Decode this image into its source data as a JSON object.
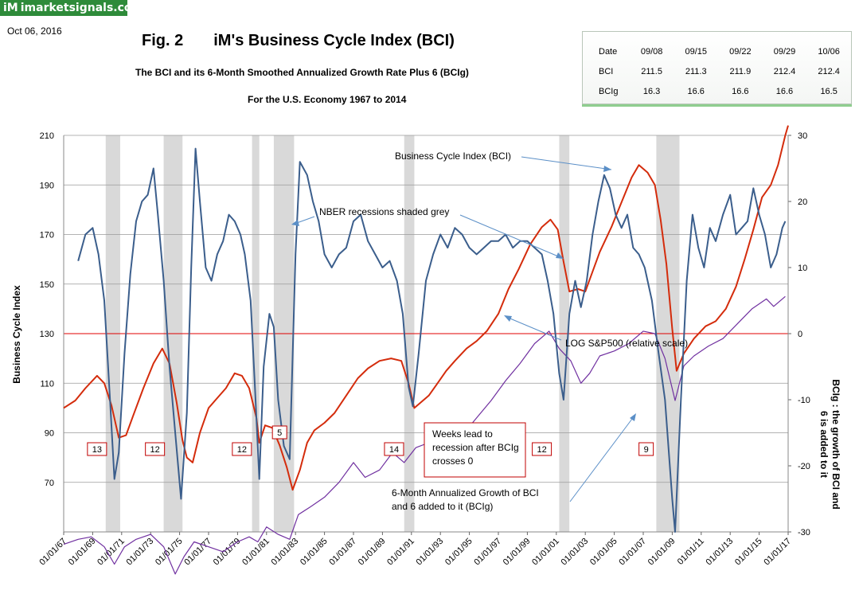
{
  "header": {
    "logo_mark": "iM",
    "logo_text": "imarketsignals.com",
    "date": "Oct 06, 2016",
    "fig_label": "Fig. 2",
    "title": "iM's Business Cycle Index (BCI)",
    "subtitle": "The BCI and its 6-Month Smoothed Annualized Growth Rate Plus 6 (BCIg)",
    "subtitle2": "For the U.S. Economy 1967  to 2014"
  },
  "table": {
    "header": [
      "Date",
      "09/08",
      "09/15",
      "09/22",
      "09/29",
      "10/06"
    ],
    "rows": [
      [
        "BCI",
        "211.5",
        "211.3",
        "211.9",
        "212.4",
        "212.4"
      ],
      [
        "BCIg",
        "16.3",
        "16.6",
        "16.6",
        "16.6",
        "16.5"
      ]
    ]
  },
  "chart_data": {
    "type": "line",
    "ylabel": "Business  Cycle  Index",
    "y2label_line1": "BCIg :  the growth of BCI and",
    "y2label_line2": "6 is added to it",
    "ylim": [
      50,
      210
    ],
    "yticks": [
      70,
      90,
      110,
      130,
      150,
      170,
      190,
      210
    ],
    "y2lim": [
      -30,
      30
    ],
    "y2ticks": [
      -30,
      -20,
      -10,
      0,
      10,
      20,
      30
    ],
    "xlim": [
      1967.0,
      2017.0
    ],
    "xticks": [
      "01/01/67",
      "01/01/69",
      "01/01/71",
      "01/01/73",
      "01/01/75",
      "01/01/77",
      "01/01/79",
      "01/01/81",
      "01/01/83",
      "01/01/85",
      "01/01/87",
      "01/01/89",
      "01/01/91",
      "01/01/93",
      "01/01/95",
      "01/01/97",
      "01/01/99",
      "01/01/01",
      "01/01/03",
      "01/01/05",
      "01/01/07",
      "01/01/09",
      "01/01/11",
      "01/01/13",
      "01/01/15",
      "01/01/17"
    ],
    "grid": "horizontal",
    "recessions": [
      [
        1969.9,
        1970.9
      ],
      [
        1973.9,
        1975.2
      ],
      [
        1980.0,
        1980.5
      ],
      [
        1981.5,
        1982.9
      ],
      [
        1990.5,
        1991.2
      ],
      [
        2001.2,
        2001.9
      ],
      [
        2007.9,
        2009.5
      ]
    ],
    "series": [
      {
        "name": "Business Cycle Index (BCI)",
        "color": "#d42c0c",
        "axis": "left",
        "points": [
          [
            1967.0,
            100
          ],
          [
            1967.8,
            103
          ],
          [
            1968.5,
            108
          ],
          [
            1969.3,
            113
          ],
          [
            1969.8,
            110
          ],
          [
            1970.3,
            101
          ],
          [
            1970.8,
            88
          ],
          [
            1971.3,
            89
          ],
          [
            1971.8,
            97
          ],
          [
            1972.5,
            108
          ],
          [
            1973.2,
            118
          ],
          [
            1973.8,
            124
          ],
          [
            1974.3,
            118
          ],
          [
            1974.8,
            102
          ],
          [
            1975.2,
            87
          ],
          [
            1975.5,
            80
          ],
          [
            1975.9,
            78
          ],
          [
            1976.4,
            90
          ],
          [
            1977.0,
            100
          ],
          [
            1977.6,
            104
          ],
          [
            1978.2,
            108
          ],
          [
            1978.8,
            114
          ],
          [
            1979.3,
            113
          ],
          [
            1979.8,
            108
          ],
          [
            1980.3,
            96
          ],
          [
            1980.5,
            86
          ],
          [
            1980.9,
            93
          ],
          [
            1981.4,
            92
          ],
          [
            1981.9,
            85
          ],
          [
            1982.4,
            76
          ],
          [
            1982.8,
            67
          ],
          [
            1983.3,
            75
          ],
          [
            1983.8,
            86
          ],
          [
            1984.3,
            91
          ],
          [
            1985.0,
            94
          ],
          [
            1985.7,
            98
          ],
          [
            1986.5,
            105
          ],
          [
            1987.3,
            112
          ],
          [
            1988.0,
            116
          ],
          [
            1988.8,
            119
          ],
          [
            1989.6,
            120
          ],
          [
            1990.3,
            119
          ],
          [
            1990.8,
            110
          ],
          [
            1991.2,
            100
          ],
          [
            1991.6,
            102
          ],
          [
            1992.2,
            105
          ],
          [
            1992.8,
            110
          ],
          [
            1993.4,
            115
          ],
          [
            1994.0,
            119
          ],
          [
            1994.8,
            124
          ],
          [
            1995.5,
            127
          ],
          [
            1996.2,
            131
          ],
          [
            1997.0,
            138
          ],
          [
            1997.7,
            148
          ],
          [
            1998.4,
            156
          ],
          [
            1999.2,
            166
          ],
          [
            2000.0,
            173
          ],
          [
            2000.6,
            176
          ],
          [
            2001.1,
            172
          ],
          [
            2001.5,
            159
          ],
          [
            2001.9,
            147
          ],
          [
            2002.5,
            148
          ],
          [
            2003.0,
            147
          ],
          [
            2003.5,
            155
          ],
          [
            2004.0,
            163
          ],
          [
            2004.8,
            173
          ],
          [
            2005.5,
            183
          ],
          [
            2006.2,
            193
          ],
          [
            2006.7,
            198
          ],
          [
            2007.3,
            195
          ],
          [
            2007.8,
            190
          ],
          [
            2008.2,
            176
          ],
          [
            2008.6,
            158
          ],
          [
            2009.0,
            132
          ],
          [
            2009.3,
            115
          ],
          [
            2009.8,
            122
          ],
          [
            2010.5,
            128
          ],
          [
            2011.3,
            133
          ],
          [
            2012.0,
            135
          ],
          [
            2012.7,
            140
          ],
          [
            2013.4,
            149
          ],
          [
            2014.0,
            160
          ],
          [
            2014.6,
            172
          ],
          [
            2015.2,
            185
          ],
          [
            2015.8,
            190
          ],
          [
            2016.3,
            198
          ],
          [
            2016.8,
            210
          ],
          [
            2017.0,
            214
          ]
        ]
      },
      {
        "name": "LOG S&P500 (relative scale)",
        "color": "#7030a0",
        "axis": "left",
        "points": [
          [
            1967.0,
            45
          ],
          [
            1968.0,
            47
          ],
          [
            1968.9,
            48
          ],
          [
            1969.8,
            44
          ],
          [
            1970.5,
            37
          ],
          [
            1971.2,
            44
          ],
          [
            1972.0,
            47
          ],
          [
            1973.0,
            49
          ],
          [
            1973.9,
            44
          ],
          [
            1974.7,
            33
          ],
          [
            1975.3,
            40
          ],
          [
            1976.0,
            46
          ],
          [
            1977.0,
            44
          ],
          [
            1978.0,
            42
          ],
          [
            1979.0,
            46
          ],
          [
            1979.8,
            48
          ],
          [
            1980.4,
            46
          ],
          [
            1981.0,
            52
          ],
          [
            1981.8,
            49
          ],
          [
            1982.6,
            47
          ],
          [
            1983.2,
            57
          ],
          [
            1984.0,
            60
          ],
          [
            1985.0,
            64
          ],
          [
            1986.0,
            70
          ],
          [
            1987.0,
            78
          ],
          [
            1987.8,
            72
          ],
          [
            1988.8,
            75
          ],
          [
            1989.7,
            82
          ],
          [
            1990.5,
            78
          ],
          [
            1991.3,
            84
          ],
          [
            1992.2,
            86
          ],
          [
            1993.3,
            88
          ],
          [
            1994.5,
            89
          ],
          [
            1995.5,
            96
          ],
          [
            1996.5,
            103
          ],
          [
            1997.5,
            111
          ],
          [
            1998.5,
            118
          ],
          [
            1999.5,
            126
          ],
          [
            2000.5,
            131
          ],
          [
            2001.2,
            124
          ],
          [
            2002.0,
            119
          ],
          [
            2002.7,
            110
          ],
          [
            2003.3,
            114
          ],
          [
            2004.0,
            121
          ],
          [
            2005.0,
            123
          ],
          [
            2006.0,
            126
          ],
          [
            2007.0,
            131
          ],
          [
            2007.8,
            130
          ],
          [
            2008.5,
            120
          ],
          [
            2009.2,
            103
          ],
          [
            2009.8,
            117
          ],
          [
            2010.5,
            121
          ],
          [
            2011.5,
            125
          ],
          [
            2012.5,
            128
          ],
          [
            2013.5,
            134
          ],
          [
            2014.5,
            140
          ],
          [
            2015.5,
            144
          ],
          [
            2016.0,
            141
          ],
          [
            2016.8,
            145
          ]
        ]
      },
      {
        "name": "6-Month Annualized Growth of BCI and 6 added to it (BCIg)",
        "color": "#3b5e8c",
        "axis": "right",
        "points": [
          [
            1968.0,
            11
          ],
          [
            1968.5,
            15
          ],
          [
            1969.0,
            16
          ],
          [
            1969.4,
            12
          ],
          [
            1969.8,
            5
          ],
          [
            1970.2,
            -10
          ],
          [
            1970.5,
            -22
          ],
          [
            1970.8,
            -18
          ],
          [
            1971.2,
            -3
          ],
          [
            1971.6,
            9
          ],
          [
            1972.0,
            17
          ],
          [
            1972.4,
            20
          ],
          [
            1972.8,
            21
          ],
          [
            1973.2,
            25
          ],
          [
            1973.5,
            18
          ],
          [
            1973.9,
            8
          ],
          [
            1974.3,
            -5
          ],
          [
            1974.7,
            -15
          ],
          [
            1975.1,
            -25
          ],
          [
            1975.5,
            -12
          ],
          [
            1975.8,
            10
          ],
          [
            1976.1,
            28
          ],
          [
            1976.4,
            20
          ],
          [
            1976.8,
            10
          ],
          [
            1977.2,
            8
          ],
          [
            1977.6,
            12
          ],
          [
            1978.0,
            14
          ],
          [
            1978.4,
            18
          ],
          [
            1978.8,
            17
          ],
          [
            1979.2,
            15
          ],
          [
            1979.5,
            12
          ],
          [
            1979.9,
            5
          ],
          [
            1980.2,
            -8
          ],
          [
            1980.5,
            -22
          ],
          [
            1980.8,
            -5
          ],
          [
            1981.2,
            3
          ],
          [
            1981.5,
            1
          ],
          [
            1981.8,
            -10
          ],
          [
            1982.2,
            -17
          ],
          [
            1982.6,
            -19
          ],
          [
            1983.0,
            12
          ],
          [
            1983.3,
            26
          ],
          [
            1983.8,
            24
          ],
          [
            1984.2,
            20
          ],
          [
            1984.6,
            17
          ],
          [
            1985.0,
            12
          ],
          [
            1985.5,
            10
          ],
          [
            1986.0,
            12
          ],
          [
            1986.5,
            13
          ],
          [
            1987.0,
            17
          ],
          [
            1987.5,
            18
          ],
          [
            1988.0,
            14
          ],
          [
            1988.5,
            12
          ],
          [
            1989.0,
            10
          ],
          [
            1989.5,
            11
          ],
          [
            1990.0,
            8
          ],
          [
            1990.4,
            3
          ],
          [
            1990.8,
            -8
          ],
          [
            1991.1,
            -11
          ],
          [
            1991.5,
            -3
          ],
          [
            1992.0,
            8
          ],
          [
            1992.5,
            12
          ],
          [
            1993.0,
            15
          ],
          [
            1993.5,
            13
          ],
          [
            1994.0,
            16
          ],
          [
            1994.5,
            15
          ],
          [
            1995.0,
            13
          ],
          [
            1995.5,
            12
          ],
          [
            1996.0,
            13
          ],
          [
            1996.5,
            14
          ],
          [
            1997.0,
            14
          ],
          [
            1997.5,
            15
          ],
          [
            1998.0,
            13
          ],
          [
            1998.5,
            14
          ],
          [
            1999.0,
            14
          ],
          [
            1999.5,
            13
          ],
          [
            2000.0,
            12
          ],
          [
            2000.4,
            8
          ],
          [
            2000.8,
            3
          ],
          [
            2001.2,
            -6
          ],
          [
            2001.5,
            -10
          ],
          [
            2001.9,
            3
          ],
          [
            2002.3,
            8
          ],
          [
            2002.7,
            4
          ],
          [
            2003.1,
            8
          ],
          [
            2003.5,
            15
          ],
          [
            2003.9,
            20
          ],
          [
            2004.3,
            24
          ],
          [
            2004.7,
            22
          ],
          [
            2005.1,
            18
          ],
          [
            2005.5,
            16
          ],
          [
            2005.9,
            18
          ],
          [
            2006.3,
            13
          ],
          [
            2006.7,
            12
          ],
          [
            2007.1,
            10
          ],
          [
            2007.6,
            5
          ],
          [
            2008.0,
            -2
          ],
          [
            2008.5,
            -10
          ],
          [
            2009.0,
            -25
          ],
          [
            2009.2,
            -30
          ],
          [
            2009.6,
            -10
          ],
          [
            2010.0,
            8
          ],
          [
            2010.4,
            18
          ],
          [
            2010.8,
            13
          ],
          [
            2011.2,
            10
          ],
          [
            2011.6,
            16
          ],
          [
            2012.0,
            14
          ],
          [
            2012.5,
            18
          ],
          [
            2013.0,
            21
          ],
          [
            2013.4,
            15
          ],
          [
            2013.8,
            16
          ],
          [
            2014.2,
            17
          ],
          [
            2014.6,
            22
          ],
          [
            2015.0,
            18
          ],
          [
            2015.4,
            15
          ],
          [
            2015.8,
            10
          ],
          [
            2016.2,
            12
          ],
          [
            2016.6,
            16
          ],
          [
            2016.8,
            17
          ]
        ]
      }
    ],
    "annotations": [
      {
        "text": "Business Cycle Index (BCI)"
      },
      {
        "text": "NBER recessions shaded grey"
      },
      {
        "text": "LOG S&P500 (relative scale)"
      },
      {
        "text_line1": "6-Month Annualized Growth of BCI",
        "text_line2": "and 6 added to it (BCIg)"
      },
      {
        "text_line1": "Weeks lead  to",
        "text_line2": "recession after BCIg",
        "text_line3": "crosses 0"
      }
    ],
    "lead_weeks": [
      {
        "label": "13",
        "x": 1969.3
      },
      {
        "label": "12",
        "x": 1973.3
      },
      {
        "label": "12",
        "x": 1979.3
      },
      {
        "label": "5",
        "x": 1981.9
      },
      {
        "label": "14",
        "x": 1989.8
      },
      {
        "label": "12",
        "x": 2000.0
      },
      {
        "label": "9",
        "x": 2007.2
      }
    ]
  }
}
